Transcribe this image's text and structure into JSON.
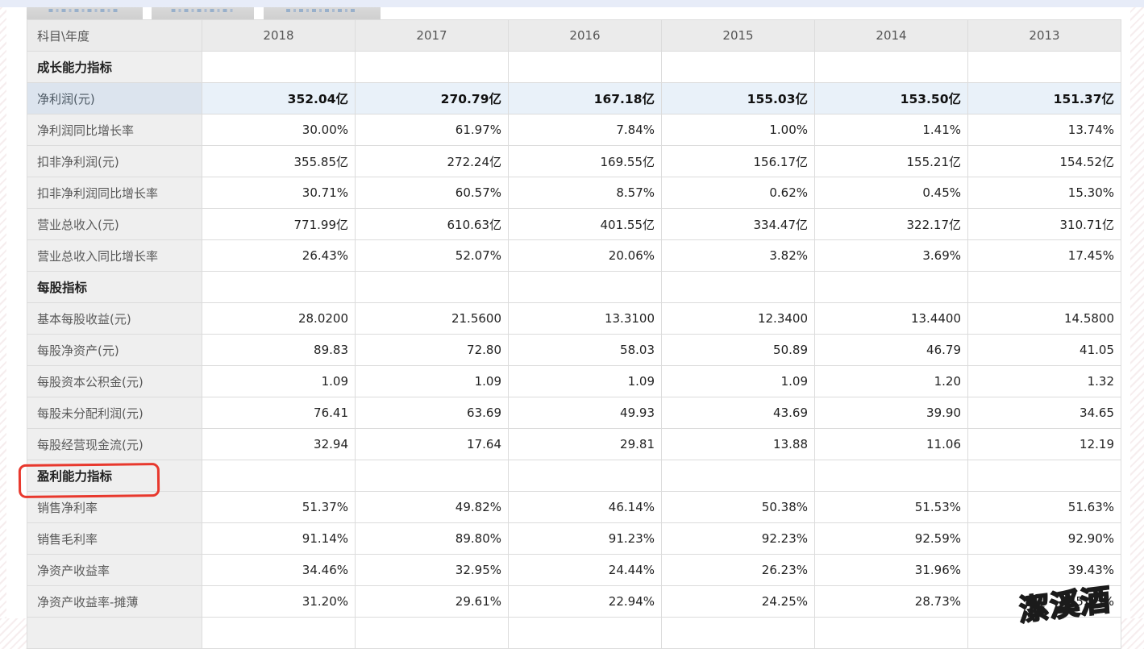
{
  "page": {
    "tabs": [
      {
        "id": "tab-1",
        "label": ""
      },
      {
        "id": "tab-2",
        "label": ""
      },
      {
        "id": "tab-3",
        "label": ""
      }
    ],
    "note": "tabs are cut off at top edge of screenshot; labels illegible"
  },
  "colors": {
    "annotation_red": "#e8382d",
    "highlight_row_bg": "#e9f1f9",
    "highlight_label_bg": "#dce4ee",
    "header_bg": "#ebebeb",
    "label_col_bg": "#efefef",
    "top_band": "#e7ecf8",
    "border": "#dcdcdc"
  },
  "watermark": {
    "text": "潔溪酒"
  },
  "table": {
    "header": [
      "科目\\年度",
      "2018",
      "2017",
      "2016",
      "2015",
      "2014",
      "2013"
    ],
    "rows": [
      {
        "type": "section",
        "label": "成长能力指标",
        "values": [
          "",
          "",
          "",
          "",
          "",
          ""
        ]
      },
      {
        "type": "highlight",
        "label": "净利润(元)",
        "values": [
          "352.04亿",
          "270.79亿",
          "167.18亿",
          "155.03亿",
          "153.50亿",
          "151.37亿"
        ]
      },
      {
        "type": "data",
        "label": "净利润同比增长率",
        "values": [
          "30.00%",
          "61.97%",
          "7.84%",
          "1.00%",
          "1.41%",
          "13.74%"
        ]
      },
      {
        "type": "data",
        "label": "扣非净利润(元)",
        "values": [
          "355.85亿",
          "272.24亿",
          "169.55亿",
          "156.17亿",
          "155.21亿",
          "154.52亿"
        ]
      },
      {
        "type": "data",
        "label": "扣非净利润同比增长率",
        "values": [
          "30.71%",
          "60.57%",
          "8.57%",
          "0.62%",
          "0.45%",
          "15.30%"
        ]
      },
      {
        "type": "data",
        "label": "营业总收入(元)",
        "values": [
          "771.99亿",
          "610.63亿",
          "401.55亿",
          "334.47亿",
          "322.17亿",
          "310.71亿"
        ]
      },
      {
        "type": "data",
        "label": "营业总收入同比增长率",
        "values": [
          "26.43%",
          "52.07%",
          "20.06%",
          "3.82%",
          "3.69%",
          "17.45%"
        ]
      },
      {
        "type": "section",
        "label": "每股指标",
        "values": [
          "",
          "",
          "",
          "",
          "",
          ""
        ]
      },
      {
        "type": "data",
        "label": "基本每股收益(元)",
        "values": [
          "28.0200",
          "21.5600",
          "13.3100",
          "12.3400",
          "13.4400",
          "14.5800"
        ]
      },
      {
        "type": "data",
        "label": "每股净资产(元)",
        "values": [
          "89.83",
          "72.80",
          "58.03",
          "50.89",
          "46.79",
          "41.05"
        ]
      },
      {
        "type": "data",
        "label": "每股资本公积金(元)",
        "values": [
          "1.09",
          "1.09",
          "1.09",
          "1.09",
          "1.20",
          "1.32"
        ]
      },
      {
        "type": "data",
        "label": "每股未分配利润(元)",
        "values": [
          "76.41",
          "63.69",
          "49.93",
          "43.69",
          "39.90",
          "34.65"
        ]
      },
      {
        "type": "data",
        "label": "每股经营现金流(元)",
        "values": [
          "32.94",
          "17.64",
          "29.81",
          "13.88",
          "11.06",
          "12.19"
        ]
      },
      {
        "type": "section",
        "label": "盈利能力指标",
        "values": [
          "",
          "",
          "",
          "",
          "",
          ""
        ],
        "annotated": true
      },
      {
        "type": "data",
        "label": "销售净利率",
        "values": [
          "51.37%",
          "49.82%",
          "46.14%",
          "50.38%",
          "51.53%",
          "51.63%"
        ]
      },
      {
        "type": "data",
        "label": "销售毛利率",
        "values": [
          "91.14%",
          "89.80%",
          "91.23%",
          "92.23%",
          "92.59%",
          "92.90%"
        ]
      },
      {
        "type": "data",
        "label": "净资产收益率",
        "values": [
          "34.46%",
          "32.95%",
          "24.44%",
          "26.23%",
          "31.96%",
          "39.43%"
        ]
      },
      {
        "type": "data",
        "label": "净资产收益率-摊薄",
        "values": [
          "31.20%",
          "29.61%",
          "22.94%",
          "24.25%",
          "28.73%",
          "35.53%"
        ],
        "note": "last value partially hidden by watermark; only '35' visible"
      },
      {
        "type": "data",
        "label": "",
        "values": [
          "",
          "",
          "",
          "",
          "",
          ""
        ],
        "note": "next row clipped at bottom edge"
      }
    ]
  }
}
